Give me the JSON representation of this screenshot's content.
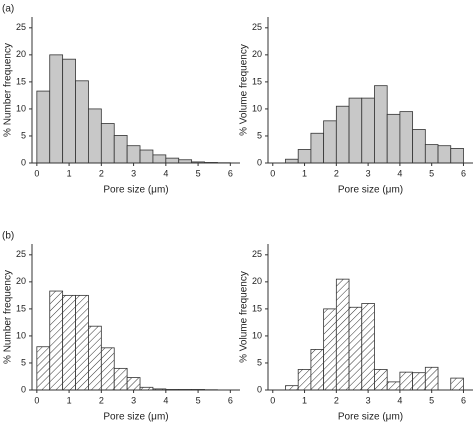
{
  "chart_data": [
    {
      "type": "histogram",
      "panel_label": "(a)",
      "ylabel": "% Number frequency",
      "xlabel": "Pore size (μm)",
      "bins": [
        0,
        0.4,
        0.8,
        1.2,
        1.6,
        2,
        2.4,
        2.8,
        3.2,
        3.6,
        4,
        4.4,
        4.8,
        5.2,
        5.6,
        6
      ],
      "values": [
        13.3,
        20,
        19.2,
        15.2,
        10,
        7.3,
        5.1,
        3.2,
        2.4,
        1.5,
        0.9,
        0.6,
        0.2,
        0.1,
        0.05
      ],
      "color": "#c8c8c8",
      "hatch": false,
      "xlim": [
        -0.15,
        6.3
      ],
      "ylim": [
        0,
        27
      ],
      "xticks": [
        0,
        1,
        2,
        3,
        4,
        5,
        6
      ],
      "yticks": [
        0,
        5,
        10,
        15,
        20,
        25
      ]
    },
    {
      "type": "histogram",
      "ylabel": "% Volume frequency",
      "xlabel": "Pore size (μm)",
      "bins": [
        0,
        0.4,
        0.8,
        1.2,
        1.6,
        2,
        2.4,
        2.8,
        3.2,
        3.6,
        4,
        4.4,
        4.8,
        5.2,
        5.6,
        6
      ],
      "values": [
        0,
        0.7,
        2.5,
        5.5,
        7.8,
        10.5,
        12,
        12,
        14.3,
        9,
        9.5,
        6.2,
        3.4,
        3.2,
        2.7
      ],
      "color": "#c8c8c8",
      "hatch": false,
      "xlim": [
        -0.15,
        6.3
      ],
      "ylim": [
        0,
        27
      ],
      "xticks": [
        0,
        1,
        2,
        3,
        4,
        5,
        6
      ],
      "yticks": [
        0,
        5,
        10,
        15,
        20,
        25
      ]
    },
    {
      "type": "histogram",
      "panel_label": "(b)",
      "ylabel": "% Number frequency",
      "xlabel": "Pore size (μm)",
      "bins": [
        0,
        0.4,
        0.8,
        1.2,
        1.6,
        2,
        2.4,
        2.8,
        3.2,
        3.6,
        4,
        4.4,
        4.8,
        5.2,
        5.6,
        6
      ],
      "values": [
        8,
        18.3,
        17.5,
        17.5,
        11.8,
        7.8,
        4,
        2.3,
        0.5,
        0.2,
        0.1,
        0.1,
        0.1,
        0.05,
        0
      ],
      "color": "#ffffff",
      "hatch": true,
      "xlim": [
        -0.15,
        6.3
      ],
      "ylim": [
        0,
        27
      ],
      "xticks": [
        0,
        1,
        2,
        3,
        4,
        5,
        6
      ],
      "yticks": [
        0,
        5,
        10,
        15,
        20,
        25
      ]
    },
    {
      "type": "histogram",
      "ylabel": "% Volume frequency",
      "xlabel": "Pore size (μm)",
      "bins": [
        0,
        0.4,
        0.8,
        1.2,
        1.6,
        2,
        2.4,
        2.8,
        3.2,
        3.6,
        4,
        4.4,
        4.8,
        5.2,
        5.6,
        6
      ],
      "values": [
        0,
        0.8,
        3.8,
        7.5,
        15,
        20.5,
        15.3,
        16,
        3.8,
        1.5,
        3.3,
        3.2,
        4.2,
        0,
        2.2
      ],
      "color": "#ffffff",
      "hatch": true,
      "xlim": [
        -0.15,
        6.3
      ],
      "ylim": [
        0,
        27
      ],
      "xticks": [
        0,
        1,
        2,
        3,
        4,
        5,
        6
      ],
      "yticks": [
        0,
        5,
        10,
        15,
        20,
        25
      ]
    }
  ]
}
